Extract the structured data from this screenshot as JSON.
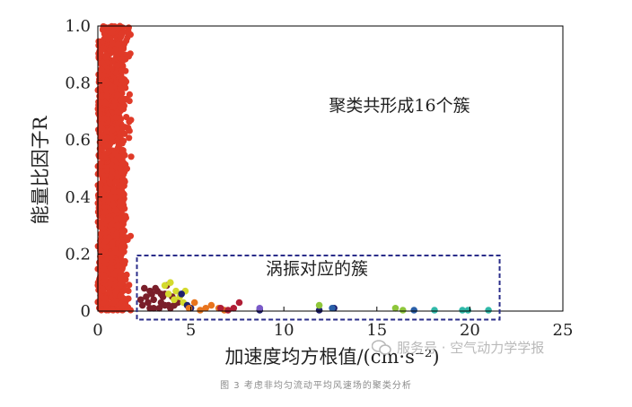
{
  "chart_data": {
    "type": "scatter",
    "xlabel": "加速度均方根值/(cm·s⁻²)",
    "ylabel": "能量比因子R",
    "xlim": [
      0,
      25
    ],
    "ylim": [
      0,
      1.0
    ],
    "x_ticks": [
      "0",
      "5",
      "10",
      "15",
      "20",
      "25"
    ],
    "y_ticks": [
      "0",
      "0.2",
      "0.4",
      "0.6",
      "0.8",
      "1.0"
    ],
    "grid": false,
    "annotations": [
      "聚类共形成16个簇",
      "涡振对应的簇"
    ],
    "highlight_box": {
      "x": [
        2.1,
        21.6
      ],
      "y": [
        -0.03,
        0.195
      ]
    },
    "series": [
      {
        "color": "#e03a28",
        "x_range": [
          0,
          2.3
        ],
        "y_range": [
          0,
          1.0
        ],
        "n": 1400
      },
      {
        "color": "#7a1e2a",
        "points": [
          [
            2.4,
            0.02
          ],
          [
            2.6,
            0.05
          ],
          [
            2.8,
            0.01
          ],
          [
            3.0,
            0.04
          ],
          [
            3.2,
            0.07
          ],
          [
            3.4,
            0.03
          ],
          [
            3.6,
            0.06
          ],
          [
            3.8,
            0.02
          ],
          [
            4.0,
            0.05
          ],
          [
            2.5,
            0.08
          ],
          [
            2.9,
            0.06
          ],
          [
            3.3,
            0.01
          ],
          [
            3.7,
            0.09
          ],
          [
            4.1,
            0.02
          ],
          [
            2.7,
            0.03
          ],
          [
            3.1,
            0.08
          ],
          [
            3.5,
            0.05
          ],
          [
            3.9,
            0.01
          ],
          [
            2.3,
            0.04
          ],
          [
            4.3,
            0.03
          ],
          [
            3.6,
            0.02
          ],
          [
            2.8,
            0.07
          ],
          [
            3.4,
            0.06
          ],
          [
            3.0,
            0.01
          ]
        ]
      },
      {
        "color": "#d4da2e",
        "points": [
          [
            3.6,
            0.09
          ],
          [
            3.9,
            0.1
          ],
          [
            4.2,
            0.07
          ],
          [
            4.4,
            0.05
          ],
          [
            4.6,
            0.03
          ],
          [
            4.1,
            0.04
          ],
          [
            4.7,
            0.07
          ],
          [
            3.8,
            0.06
          ]
        ]
      },
      {
        "color": "#1f1f6e",
        "points": [
          [
            4.5,
            0.06
          ],
          [
            4.8,
            0.02
          ],
          [
            5.0,
            0.01
          ],
          [
            8.7,
            0.0
          ],
          [
            11.9,
            0.0
          ],
          [
            12.7,
            0.01
          ]
        ]
      },
      {
        "color": "#e8741e",
        "points": [
          [
            4.9,
            0.01
          ],
          [
            5.2,
            0.03
          ],
          [
            5.5,
            0.0
          ],
          [
            5.8,
            0.01
          ],
          [
            6.1,
            0.02
          ],
          [
            6.5,
            0.01
          ],
          [
            6.8,
            0.0
          ]
        ]
      },
      {
        "color": "#b01e36",
        "points": [
          [
            6.6,
            0.01
          ],
          [
            7.0,
            0.0
          ],
          [
            7.3,
            0.01
          ],
          [
            7.6,
            0.03
          ]
        ]
      },
      {
        "color": "#7a5ac8",
        "points": [
          [
            8.7,
            0.01
          ]
        ]
      },
      {
        "color": "#8ec63a",
        "points": [
          [
            11.9,
            0.02
          ],
          [
            16.0,
            0.01
          ],
          [
            16.4,
            0.0
          ]
        ]
      },
      {
        "color": "#2a5fa8",
        "points": [
          [
            12.6,
            0.01
          ],
          [
            17.0,
            0.0
          ]
        ]
      },
      {
        "color": "#30b8a8",
        "points": [
          [
            18.1,
            0.0
          ],
          [
            19.6,
            0.0
          ],
          [
            19.9,
            0.0
          ],
          [
            21.0,
            0.0
          ]
        ]
      }
    ]
  },
  "caption": "图  3   考虑非均匀流动平均风速场的聚类分析",
  "watermark": "服务号 · 空气动力学学报"
}
